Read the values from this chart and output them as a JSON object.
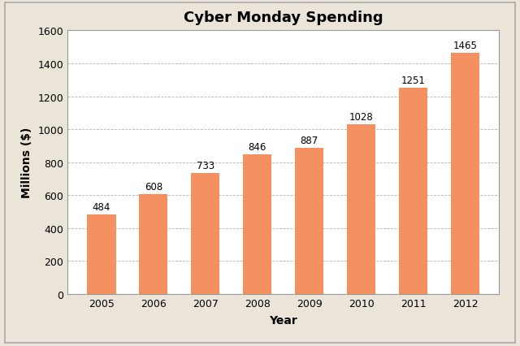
{
  "title": "Cyber Monday Spending",
  "xlabel": "Year",
  "ylabel": "Millions ($)",
  "categories": [
    "2005",
    "2006",
    "2007",
    "2008",
    "2009",
    "2010",
    "2011",
    "2012"
  ],
  "values": [
    484,
    608,
    733,
    846,
    887,
    1028,
    1251,
    1465
  ],
  "bar_color": "#F59060",
  "bar_edgecolor": "#F59060",
  "outer_background": "#EAE5D8",
  "plot_background": "#FFFFFF",
  "ylim": [
    0,
    1600
  ],
  "yticks": [
    0,
    200,
    400,
    600,
    800,
    1000,
    1200,
    1400,
    1600
  ],
  "title_fontsize": 13,
  "label_fontsize": 10,
  "tick_fontsize": 9,
  "annotation_fontsize": 8.5,
  "bar_width": 0.55,
  "grid_color": "#AAAAAA",
  "border_color": "#999999",
  "outer_border_color": "#AAAAAA"
}
